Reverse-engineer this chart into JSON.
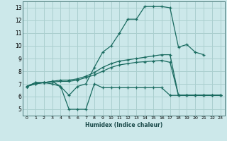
{
  "xlabel": "Humidex (Indice chaleur)",
  "bg_color": "#cce8ea",
  "grid_color": "#aacfcf",
  "line_color": "#1a6b60",
  "xlim": [
    -0.5,
    23.5
  ],
  "ylim": [
    4.5,
    13.5
  ],
  "xticks": [
    0,
    1,
    2,
    3,
    4,
    5,
    6,
    7,
    8,
    9,
    10,
    11,
    12,
    13,
    14,
    15,
    16,
    17,
    18,
    19,
    20,
    21,
    22,
    23
  ],
  "yticks": [
    5,
    6,
    7,
    8,
    9,
    10,
    11,
    12,
    13
  ],
  "line1_x": [
    0,
    1,
    2,
    3,
    4,
    5,
    6,
    7,
    8,
    9,
    10,
    11,
    12,
    13,
    14,
    15,
    16,
    17,
    18,
    19,
    20,
    21
  ],
  "line1_y": [
    6.8,
    7.1,
    7.1,
    7.0,
    6.8,
    6.1,
    6.8,
    7.0,
    8.3,
    9.5,
    10.0,
    11.0,
    12.1,
    12.1,
    13.1,
    13.1,
    13.1,
    13.0,
    9.9,
    10.1,
    9.5,
    9.3
  ],
  "line2_x": [
    0,
    1,
    2,
    3,
    4,
    5,
    6,
    7,
    8,
    9,
    10,
    11,
    12,
    13,
    14,
    15,
    16,
    17,
    18,
    19,
    20,
    21,
    22,
    23
  ],
  "line2_y": [
    6.8,
    7.1,
    7.1,
    7.2,
    6.8,
    5.0,
    5.0,
    5.0,
    7.0,
    6.7,
    6.7,
    6.7,
    6.7,
    6.7,
    6.7,
    6.7,
    6.7,
    6.1,
    6.1,
    6.1,
    6.1,
    6.1,
    6.1,
    6.1
  ],
  "line3_x": [
    0,
    1,
    2,
    3,
    4,
    5,
    6,
    7,
    8,
    9,
    10,
    11,
    12,
    13,
    14,
    15,
    16,
    17,
    18,
    19,
    20,
    21,
    22,
    23
  ],
  "line3_y": [
    6.8,
    7.0,
    7.1,
    7.2,
    7.3,
    7.3,
    7.4,
    7.6,
    7.9,
    8.3,
    8.6,
    8.8,
    8.9,
    9.0,
    9.1,
    9.2,
    9.3,
    9.3,
    6.1,
    6.1,
    6.1,
    6.1,
    6.1,
    6.1
  ],
  "line4_x": [
    0,
    1,
    2,
    3,
    4,
    5,
    6,
    7,
    8,
    9,
    10,
    11,
    12,
    13,
    14,
    15,
    16,
    17,
    18,
    19,
    20,
    21,
    22,
    23
  ],
  "line4_y": [
    6.8,
    7.0,
    7.1,
    7.15,
    7.2,
    7.2,
    7.3,
    7.5,
    7.7,
    8.0,
    8.3,
    8.5,
    8.6,
    8.7,
    8.75,
    8.8,
    8.85,
    8.7,
    6.1,
    6.1,
    6.1,
    6.1,
    6.1,
    6.1
  ]
}
